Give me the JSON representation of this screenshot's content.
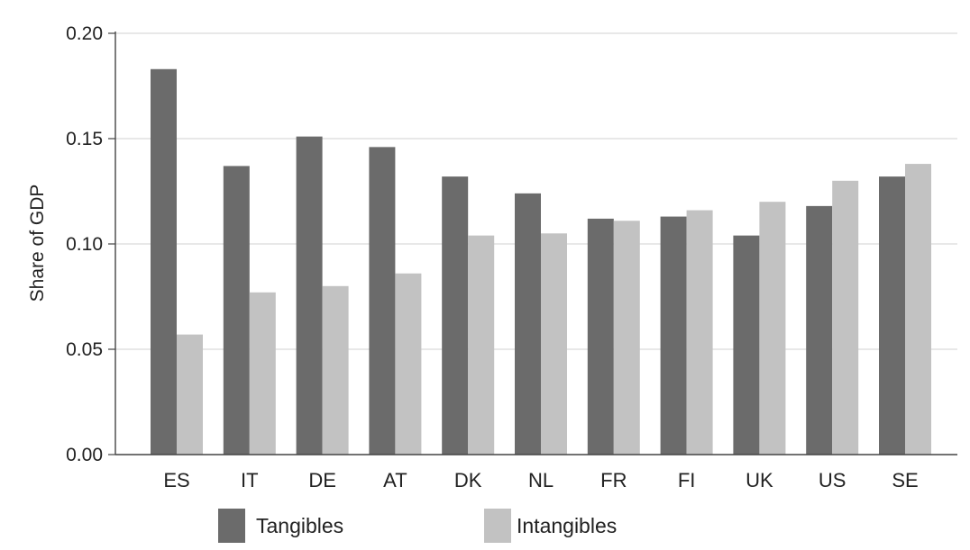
{
  "chart_data": {
    "type": "bar",
    "title": "",
    "xlabel": "",
    "ylabel": "Share of GDP",
    "ylim": [
      0,
      0.2
    ],
    "yticks": [
      "0.00",
      "0.05",
      "0.10",
      "0.15",
      "0.20"
    ],
    "categories": [
      "ES",
      "IT",
      "DE",
      "AT",
      "DK",
      "NL",
      "FR",
      "FI",
      "UK",
      "US",
      "SE"
    ],
    "series": [
      {
        "name": "Tangibles",
        "color": "#6b6b6b",
        "values": [
          0.183,
          0.137,
          0.151,
          0.146,
          0.132,
          0.124,
          0.112,
          0.113,
          0.104,
          0.118,
          0.132
        ]
      },
      {
        "name": "Intangibles",
        "color": "#c2c2c2",
        "values": [
          0.057,
          0.077,
          0.08,
          0.086,
          0.104,
          0.105,
          0.111,
          0.116,
          0.12,
          0.13,
          0.138
        ]
      }
    ],
    "grid": true,
    "legend": "bottom"
  }
}
